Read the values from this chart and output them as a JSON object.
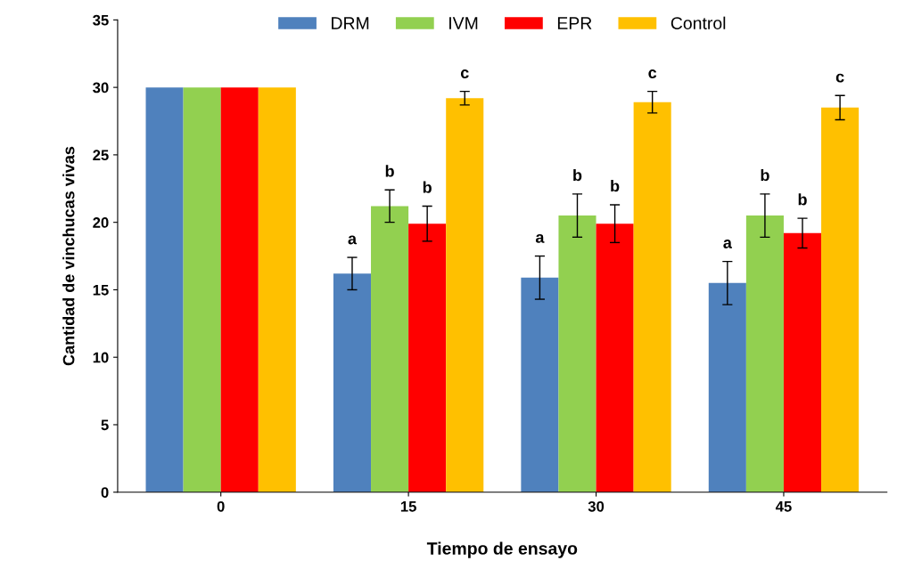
{
  "chart_data": {
    "type": "bar",
    "xlabel": "Tiempo de ensayo",
    "ylabel": "Cantidad de vinchucas vivas",
    "categories": [
      "0",
      "15",
      "30",
      "45"
    ],
    "series": [
      {
        "name": "DRM",
        "color": "#4f81bd",
        "values": [
          30,
          16.2,
          15.9,
          15.5
        ],
        "errors": [
          null,
          1.2,
          1.6,
          1.6
        ],
        "value_labels": [
          null,
          "a",
          "a",
          "a"
        ]
      },
      {
        "name": "IVM",
        "color": "#92d050",
        "values": [
          30,
          21.2,
          20.5,
          20.5
        ],
        "errors": [
          null,
          1.2,
          1.6,
          1.6
        ],
        "value_labels": [
          null,
          "b",
          "b",
          "b"
        ]
      },
      {
        "name": "EPR",
        "color": "#ff0000",
        "values": [
          30,
          19.9,
          19.9,
          19.2
        ],
        "errors": [
          null,
          1.3,
          1.4,
          1.1
        ],
        "value_labels": [
          null,
          "b",
          "b",
          "b"
        ]
      },
      {
        "name": "Control",
        "color": "#ffc000",
        "values": [
          30,
          29.2,
          28.9,
          28.5
        ],
        "errors": [
          null,
          0.5,
          0.8,
          0.9
        ],
        "value_labels": [
          null,
          "c",
          "c",
          "c"
        ]
      }
    ],
    "ylim": [
      0,
      35
    ],
    "yticks": [
      0,
      5,
      10,
      15,
      20,
      25,
      30,
      35
    ],
    "grid": false,
    "legend": "top"
  }
}
